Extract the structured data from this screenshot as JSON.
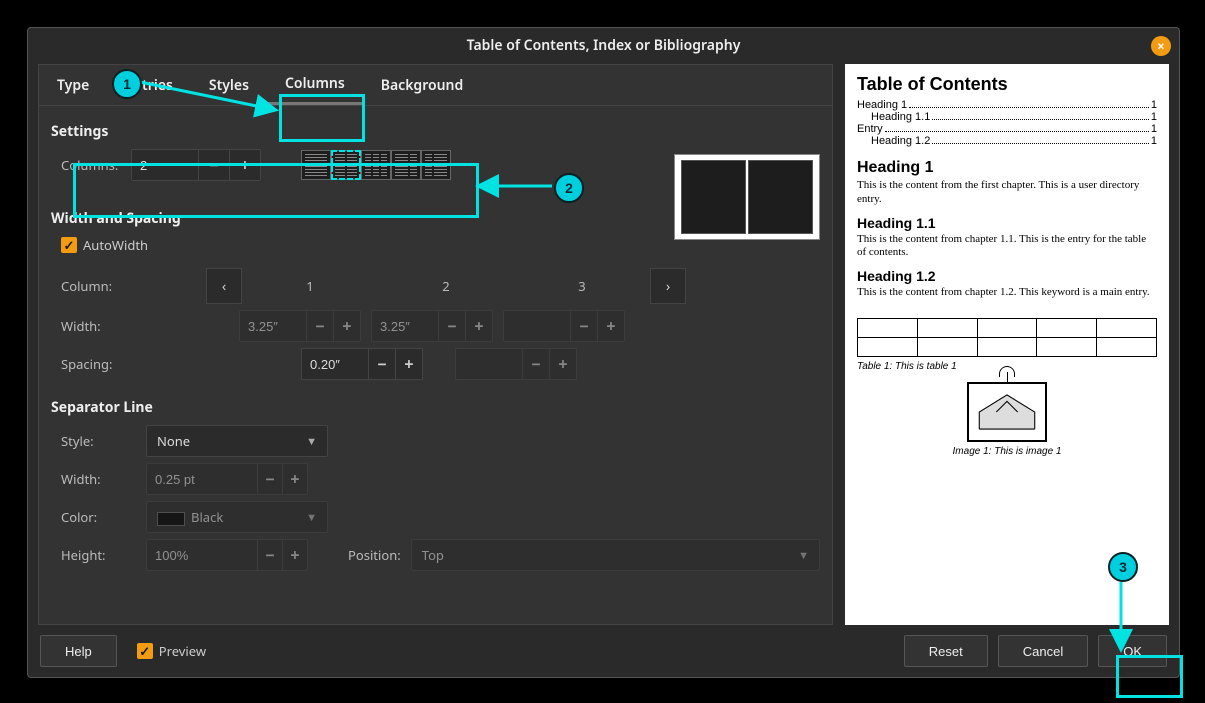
{
  "title": "Table of Contents, Index or Bibliography",
  "tabs": [
    "Type",
    "Entries",
    "Styles",
    "Columns",
    "Background"
  ],
  "active_tab": "Columns",
  "sections": {
    "settings": "Settings",
    "width_spacing": "Width and Spacing",
    "separator": "Separator Line"
  },
  "settings": {
    "columns_label": "Columns:",
    "columns_value": "2",
    "layouts": [
      1,
      2,
      3,
      2,
      2
    ],
    "layout_selected_index": 1
  },
  "width_spacing": {
    "autowidth_label": "AutoWidth",
    "autowidth_checked": true,
    "column_label": "Column:",
    "col_headers": [
      "1",
      "2",
      "3"
    ],
    "width_label": "Width:",
    "width1": "3.25″",
    "width2": "3.25″",
    "spacing_label": "Spacing:",
    "spacing1": "0.20″"
  },
  "separator": {
    "style_label": "Style:",
    "style_value": "None",
    "width_label": "Width:",
    "width_value": "0.25 pt",
    "color_label": "Color:",
    "color_value": "Black",
    "color_hex": "#000000",
    "height_label": "Height:",
    "height_value": "100%",
    "position_label": "Position:",
    "position_value": "Top"
  },
  "footer": {
    "help": "Help",
    "preview_label": "Preview",
    "preview_checked": true,
    "reset": "Reset",
    "cancel": "Cancel",
    "ok": "OK"
  },
  "preview": {
    "title": "Table of Contents",
    "toc": [
      {
        "label": "Heading 1",
        "page": "1",
        "indent": false
      },
      {
        "label": "Heading 1.1",
        "page": "1",
        "indent": true
      },
      {
        "label": "Entry",
        "page": "1",
        "indent": false
      },
      {
        "label": "Heading 1.2",
        "page": "1",
        "indent": true
      }
    ],
    "h1": "Heading 1",
    "p1": "This is the content from the first chapter. This is a user directory entry.",
    "h11": "Heading 1.1",
    "p11": "This is the content from chapter 1.1. This is the entry for the table of contents.",
    "h12": "Heading 1.2",
    "p12": "This is the content from chapter 1.2. This keyword is a main entry.",
    "table_caption": "Table 1: This is table 1",
    "image_caption": "Image 1: This is image 1"
  },
  "annotations": {
    "n1": "1",
    "n2": "2",
    "n3": "3",
    "color": "#00e3e3"
  }
}
